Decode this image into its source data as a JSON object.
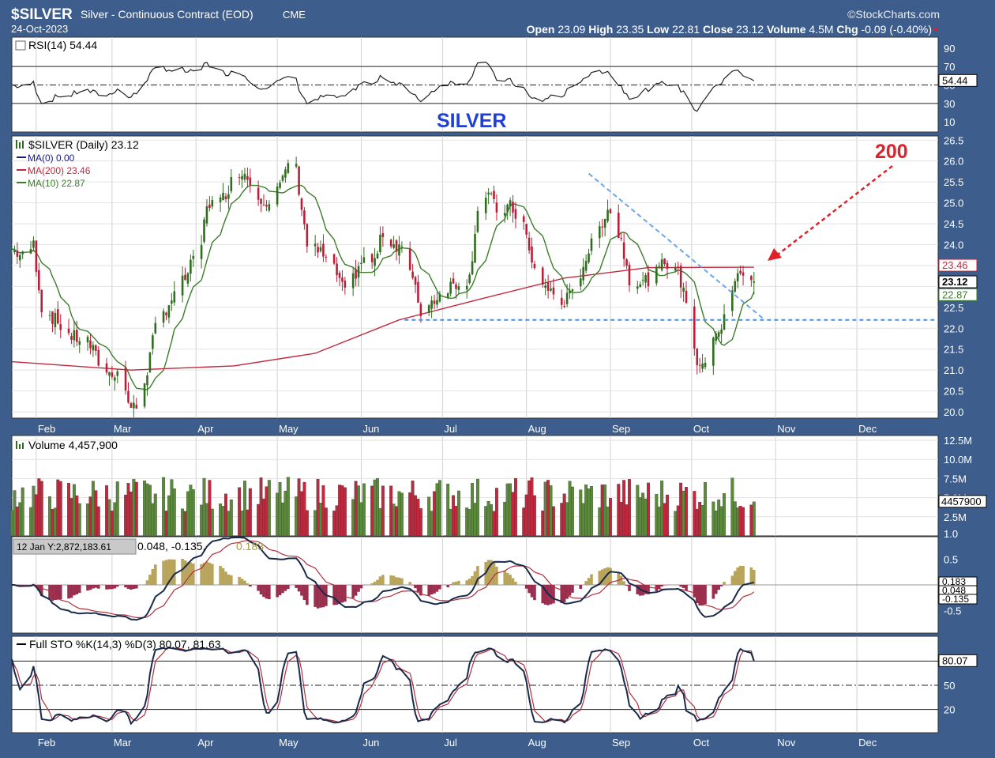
{
  "header": {
    "symbol": "$SILVER",
    "description": "Silver - Continuous Contract (EOD)",
    "exchange": "CME",
    "date": "24-Oct-2023",
    "brand": "©StockCharts.com",
    "quote": [
      {
        "label": "Open",
        "value": "23.09"
      },
      {
        "label": "High",
        "value": "23.35"
      },
      {
        "label": "Low",
        "value": "22.81"
      },
      {
        "label": "Close",
        "value": "23.12"
      },
      {
        "label": "Volume",
        "value": "4.5M"
      },
      {
        "label": "Chg",
        "value": "-0.09 (-0.40%)"
      }
    ]
  },
  "months": [
    "Feb",
    "Mar",
    "Apr",
    "May",
    "Jun",
    "Jul",
    "Aug",
    "Sep",
    "Oct",
    "Nov",
    "Dec"
  ],
  "rsi_panel": {
    "legend": "RSI(14) 54.44",
    "ticks": [
      "90",
      "70",
      "50",
      "30",
      "10"
    ],
    "value_tag": "54.44",
    "watermark": "SILVER"
  },
  "price_panel": {
    "legend": [
      "$SILVER (Daily) 23.12",
      "MA(0) 0.00",
      "MA(200) 23.46",
      "MA(10) 22.87"
    ],
    "ticks": [
      "26.5",
      "26.0",
      "25.5",
      "25.0",
      "24.5",
      "24.0",
      "23.5",
      "23.0",
      "22.5",
      "22.0",
      "21.5",
      "21.0",
      "20.5",
      "20.0"
    ],
    "tags": [
      "23.46",
      "23.12",
      "22.87"
    ],
    "annotation": "200"
  },
  "volume_panel": {
    "legend": "Volume 4,457,900",
    "ticks": [
      "12.5M",
      "10.0M",
      "7.5M",
      "5.0M",
      "2.5M"
    ],
    "tag": "4457900"
  },
  "macd_panel": {
    "legend_prefix": "12 Jan Y:2,872,183.61",
    "legend_values": "0.048, -0.135,",
    "legend_hist": "0.183",
    "ticks": [
      "1.0",
      "0.5",
      "-0.5"
    ],
    "tags": [
      "0.183",
      "0.048",
      "-0.135"
    ]
  },
  "sto_panel": {
    "legend": "Full STO %K(14,3) %D(3) 80.07, 81.63",
    "ticks": [
      "50",
      "20"
    ],
    "tag": "80.07"
  },
  "chart_data": {
    "type": "candlestick",
    "title": "$SILVER Silver - Continuous Contract (EOD)",
    "x_range": [
      "2023-01-23",
      "2023-12-31"
    ],
    "price_range": [
      19.85,
      26.6
    ],
    "price_closes": [
      [
        "2023-01-23",
        23.9
      ],
      [
        "2023-01-27",
        23.7
      ],
      [
        "2023-01-31",
        24.0
      ],
      [
        "2023-02-03",
        22.5
      ],
      [
        "2023-02-08",
        22.2
      ],
      [
        "2023-02-14",
        21.8
      ],
      [
        "2023-02-20",
        21.7
      ],
      [
        "2023-02-24",
        21.2
      ],
      [
        "2023-02-28",
        20.9
      ],
      [
        "2023-03-03",
        21.0
      ],
      [
        "2023-03-08",
        20.1
      ],
      [
        "2023-03-10",
        20.1
      ],
      [
        "2023-03-14",
        21.0
      ],
      [
        "2023-03-17",
        22.0
      ],
      [
        "2023-03-22",
        22.6
      ],
      [
        "2023-03-28",
        23.2
      ],
      [
        "2023-04-03",
        24.0
      ],
      [
        "2023-04-05",
        25.0
      ],
      [
        "2023-04-10",
        25.0
      ],
      [
        "2023-04-14",
        25.5
      ],
      [
        "2023-04-18",
        25.8
      ],
      [
        "2023-04-24",
        25.2
      ],
      [
        "2023-04-28",
        25.0
      ],
      [
        "2023-05-03",
        25.5
      ],
      [
        "2023-05-05",
        26.0
      ],
      [
        "2023-05-08",
        25.8
      ],
      [
        "2023-05-12",
        24.0
      ],
      [
        "2023-05-17",
        23.8
      ],
      [
        "2023-05-23",
        23.3
      ],
      [
        "2023-05-26",
        22.8
      ],
      [
        "2023-06-01",
        23.6
      ],
      [
        "2023-06-06",
        23.6
      ],
      [
        "2023-06-09",
        24.3
      ],
      [
        "2023-06-13",
        24.0
      ],
      [
        "2023-06-16",
        24.0
      ],
      [
        "2023-06-21",
        22.9
      ],
      [
        "2023-06-23",
        22.4
      ],
      [
        "2023-06-28",
        22.7
      ],
      [
        "2023-07-03",
        23.0
      ],
      [
        "2023-07-07",
        23.1
      ],
      [
        "2023-07-11",
        23.2
      ],
      [
        "2023-07-14",
        24.9
      ],
      [
        "2023-07-18",
        25.2
      ],
      [
        "2023-07-21",
        24.8
      ],
      [
        "2023-07-26",
        24.9
      ],
      [
        "2023-07-31",
        24.5
      ],
      [
        "2023-08-03",
        23.5
      ],
      [
        "2023-08-08",
        23.0
      ],
      [
        "2023-08-14",
        22.6
      ],
      [
        "2023-08-18",
        22.8
      ],
      [
        "2023-08-23",
        23.7
      ],
      [
        "2023-08-28",
        24.4
      ],
      [
        "2023-08-31",
        24.9
      ],
      [
        "2023-09-05",
        24.1
      ],
      [
        "2023-09-08",
        23.2
      ],
      [
        "2023-09-13",
        23.1
      ],
      [
        "2023-09-18",
        23.3
      ],
      [
        "2023-09-21",
        23.6
      ],
      [
        "2023-09-25",
        23.5
      ],
      [
        "2023-09-29",
        22.7
      ],
      [
        "2023-10-03",
        21.2
      ],
      [
        "2023-10-05",
        21.0
      ],
      [
        "2023-10-09",
        21.9
      ],
      [
        "2023-10-12",
        22.0
      ],
      [
        "2023-10-16",
        22.9
      ],
      [
        "2023-10-19",
        23.4
      ],
      [
        "2023-10-24",
        23.12
      ]
    ],
    "ma200": [
      [
        "2023-01-23",
        21.2
      ],
      [
        "2023-03-08",
        21.0
      ],
      [
        "2023-04-15",
        21.1
      ],
      [
        "2023-05-15",
        21.4
      ],
      [
        "2023-06-15",
        22.2
      ],
      [
        "2023-07-15",
        22.7
      ],
      [
        "2023-08-15",
        23.2
      ],
      [
        "2023-09-15",
        23.45
      ],
      [
        "2023-10-24",
        23.46
      ]
    ],
    "ma10_last": 22.87,
    "rsi_last": 54.44,
    "volume_last": 4457900,
    "volume_range": [
      0,
      12500000
    ],
    "macd": {
      "macd": 0.048,
      "signal": -0.135,
      "histogram": 0.183
    },
    "stochastic": {
      "k": 80.07,
      "d": 81.63
    },
    "grid": true
  }
}
